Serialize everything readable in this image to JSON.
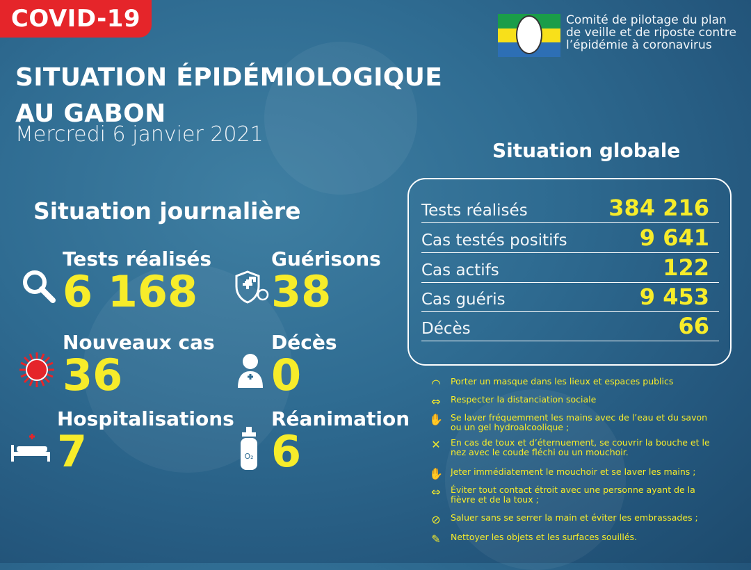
{
  "badge": "COVID-19",
  "title_line1": "SITUATION ÉPIDÉMIOLOGIQUE",
  "title_line2": "AU GABON",
  "date": "Mercredi 6 janvier 2021",
  "org": {
    "line1": "Comité de pilotage du plan",
    "line2": "de veille et de riposte contre",
    "line3": "l’épidémie à coronavirus"
  },
  "daily": {
    "heading": "Situation journalière",
    "tests_label": "Tests réalisés",
    "tests_value": "6 168",
    "gueri_label": "Guérisons",
    "gueri_value": "38",
    "cases_label": "Nouveaux cas",
    "cases_value": "36",
    "deces_label": "Décès",
    "deces_value": "0",
    "hosp_label": "Hospitalisations",
    "hosp_value": "7",
    "rea_label": "Réanimation",
    "rea_value": "6"
  },
  "global": {
    "heading": "Situation globale",
    "rows": [
      {
        "label": "Tests réalisés",
        "value": "384 216"
      },
      {
        "label": "Cas testés positifs",
        "value": "9 641"
      },
      {
        "label": "Cas actifs",
        "value": "122"
      },
      {
        "label": "Cas guéris",
        "value": "9 453"
      },
      {
        "label": "Décès",
        "value": "66"
      }
    ]
  },
  "advice": [
    "Porter un masque dans les lieux et espaces publics",
    "Respecter la distanciation sociale",
    "Se laver fréquemment les mains avec de l’eau et du savon ou un gel hydroalcoolique ;",
    "En cas de toux et d’éternuement, se couvrir la bouche et le nez avec le coude fléchi ou un mouchoir.",
    "Jeter immédiatement le mouchoir et se laver les mains ;",
    "Éviter tout contact étroit avec une personne ayant de la fièvre et de la toux ;",
    "Saluer sans se serrer la main et éviter les embrassades ;",
    "Nettoyer les objets et les surfaces souillés."
  ],
  "colors": {
    "accent_yellow": "#f7ec2a",
    "badge_red": "#e5252a",
    "background": "#2f6c92"
  }
}
